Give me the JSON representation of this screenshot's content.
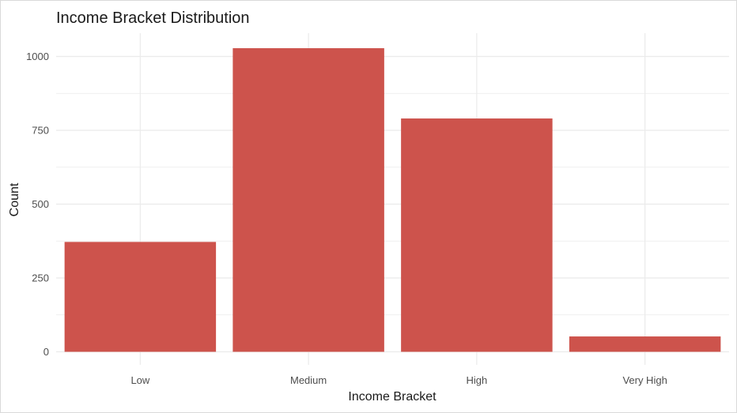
{
  "chart_data": {
    "type": "bar",
    "title": "Income Bracket Distribution",
    "xlabel": "Income Bracket",
    "ylabel": "Count",
    "categories": [
      "Low",
      "Medium",
      "High",
      "Very High"
    ],
    "values": [
      372,
      1028,
      790,
      52
    ],
    "ylim": [
      0,
      1050
    ],
    "yticks": [
      0,
      250,
      500,
      750,
      1000
    ],
    "grid": true,
    "bar_color": "#CD534C",
    "grid_color": "#ebebeb"
  }
}
